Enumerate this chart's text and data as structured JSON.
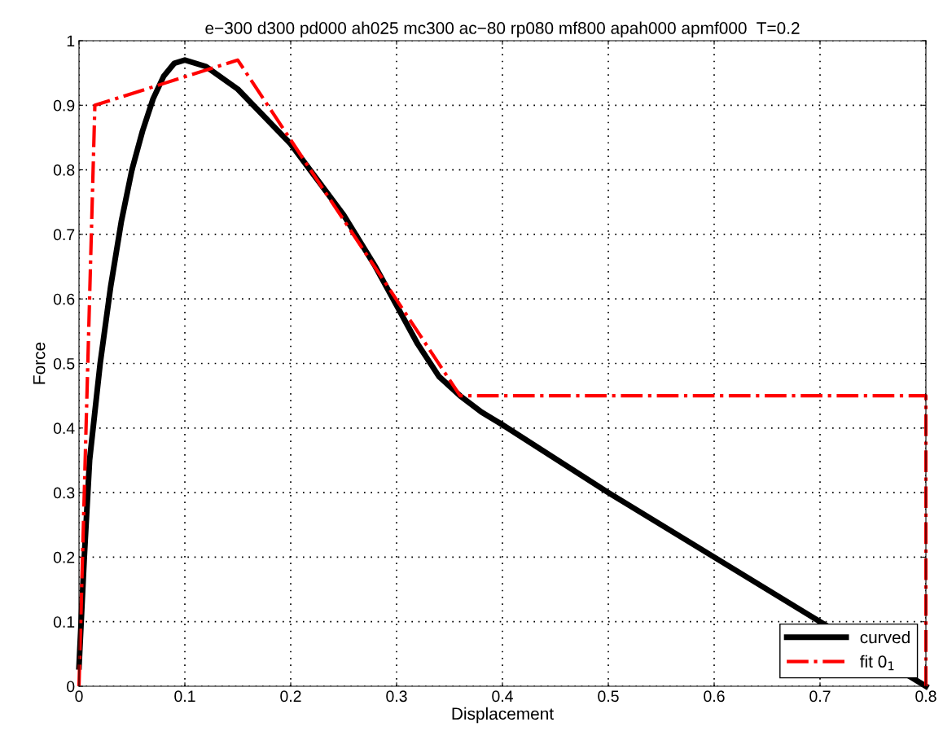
{
  "chart_data": {
    "type": "line",
    "title": "e−300 d300 pd000 ah025 mc300 ac−80 rp080 mf800 apah000 apmf000  T=0.2",
    "xlabel": "Displacement",
    "ylabel": "Force",
    "xlim": [
      0,
      0.8
    ],
    "xticks": [
      0,
      0.1,
      0.2,
      0.3,
      0.4,
      0.5,
      0.6,
      0.7,
      0.8
    ],
    "ylim": [
      0,
      1
    ],
    "yticks": [
      0,
      0.1,
      0.2,
      0.3,
      0.4,
      0.5,
      0.6,
      0.7,
      0.8,
      0.9,
      1
    ],
    "grid": true,
    "legend": "bottom right",
    "series": [
      {
        "name": "curved",
        "color": "#000000",
        "line_style": "solid",
        "x": [
          0,
          0.005,
          0.01,
          0.02,
          0.03,
          0.04,
          0.05,
          0.06,
          0.07,
          0.08,
          0.09,
          0.1,
          0.12,
          0.15,
          0.2,
          0.25,
          0.28,
          0.3,
          0.32,
          0.34,
          0.36,
          0.38,
          0.4,
          0.5,
          0.6,
          0.68,
          0.8
        ],
        "values": [
          0.03,
          0.2,
          0.35,
          0.5,
          0.62,
          0.72,
          0.8,
          0.86,
          0.91,
          0.945,
          0.965,
          0.97,
          0.96,
          0.925,
          0.84,
          0.73,
          0.65,
          0.59,
          0.53,
          0.48,
          0.45,
          0.425,
          0.405,
          0.3,
          0.2,
          0.12,
          0
        ]
      },
      {
        "name": "fit 0$_{1}$",
        "color": "#ff0000",
        "line_style": "dashdot",
        "x": [
          0,
          0.015,
          0.15,
          0.36,
          0.8,
          0.8
        ],
        "values": [
          0,
          0.9,
          0.97,
          0.45,
          0.45,
          0
        ]
      }
    ]
  }
}
